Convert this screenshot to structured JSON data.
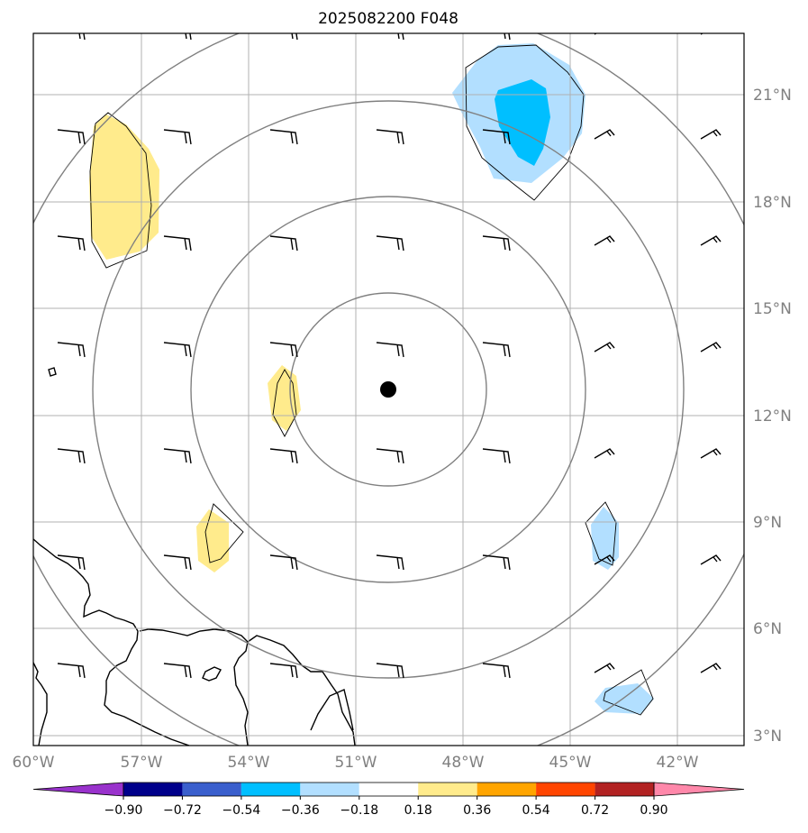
{
  "title": "2025082200 F048",
  "lon_labels": [
    "60°W",
    "57°W",
    "54°W",
    "51°W",
    "48°W",
    "45°W",
    "42°W"
  ],
  "lon_values": [
    -60,
    -57,
    -54,
    -51,
    -48,
    -45,
    -42
  ],
  "lat_labels": [
    "3°N",
    "6°N",
    "9°N",
    "12°N",
    "15°N",
    "18°N",
    "21°N"
  ],
  "lat_values": [
    3,
    6,
    9,
    12,
    15,
    18,
    21
  ],
  "center": {
    "lon": -50.0,
    "lat": 12.7
  },
  "range_ring_radii_deg": [
    2.7,
    5.4,
    8.1,
    10.8
  ],
  "colorbar": {
    "levels": [
      "−0.90",
      "−0.72",
      "−0.54",
      "−0.36",
      "−0.18",
      "0.18",
      "0.36",
      "0.54",
      "0.72",
      "0.90"
    ],
    "colors": [
      "#9932cc",
      "#00008b",
      "#3a5fcd",
      "#00bfff",
      "#b2dfff",
      "#ffffff",
      "#ffeb8c",
      "#ffa500",
      "#ff4500",
      "#b22222",
      "#ff88aa"
    ]
  },
  "anomaly_regions": [
    {
      "name": "positive-anomaly-northwest",
      "sign": "positive",
      "color": "#ffeb8c"
    },
    {
      "name": "positive-anomaly-center-west",
      "sign": "positive",
      "color": "#ffeb8c"
    },
    {
      "name": "positive-anomaly-southwest",
      "sign": "positive",
      "color": "#ffeb8c"
    },
    {
      "name": "negative-anomaly-northeast",
      "sign": "negative",
      "color": "#b2dfff"
    },
    {
      "name": "negative-anomaly-northeast-core",
      "sign": "negative",
      "color": "#00bfff"
    },
    {
      "name": "negative-anomaly-east",
      "sign": "negative",
      "color": "#b2dfff"
    },
    {
      "name": "negative-anomaly-southeast",
      "sign": "negative",
      "color": "#b2dfff"
    }
  ]
}
